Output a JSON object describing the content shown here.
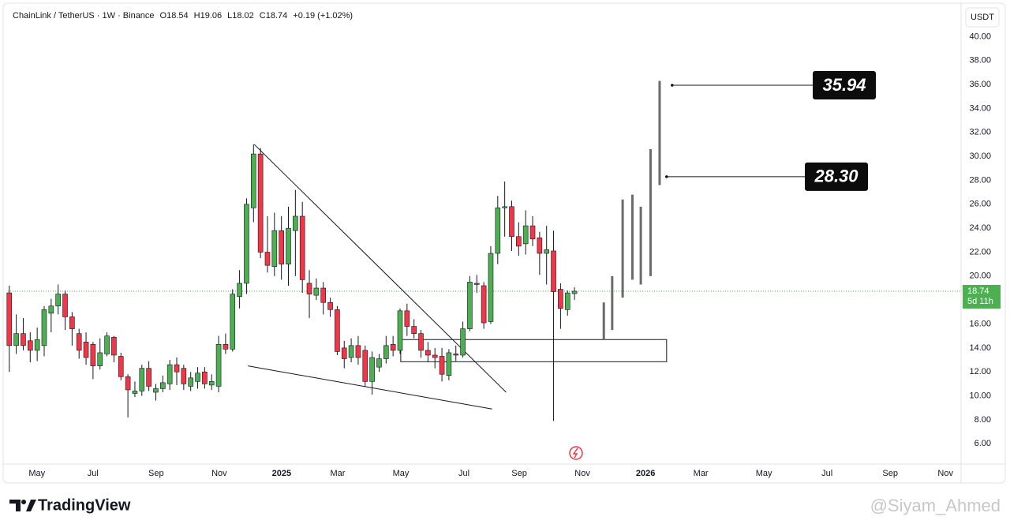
{
  "chart_data": {
    "type": "candlestick",
    "header": [
      "ChainLink / TetherUS · 1W · Binance",
      "O18.54",
      "H19.06",
      "L18.02",
      "C18.74",
      "+0.19 (+1.02%)"
    ],
    "currency": "USDT",
    "countdown": "5d 11h",
    "up_color": "#4caf50",
    "down_color": "#f23645",
    "grid": false,
    "open": [
      18.6,
      14.2,
      15.2,
      14.6,
      13.8,
      14.2,
      16.9,
      17.5,
      18.5,
      16.6,
      15.2,
      14.5,
      14.3,
      12.5,
      13.5,
      14.9,
      13.3,
      11.6,
      10.2,
      10.4,
      12.3,
      10.3,
      10.6,
      11,
      12.6,
      12.3,
      10.8,
      11.2,
      12,
      10.9,
      10.8,
      14.3,
      13.9,
      18.3,
      19.4,
      25.7,
      30.2,
      22,
      20.8,
      23.8,
      21,
      23.8,
      25,
      19.4,
      18.4,
      19,
      17.8,
      17.2,
      14,
      13.2,
      14.2,
      13.8,
      11.2,
      12.4,
      13.1,
      14.3,
      13.8,
      17.1,
      15.8,
      15.2,
      13.8,
      13.4,
      13.3,
      11.7,
      13.5,
      13.4,
      15.6,
      19.4,
      19.2,
      16.2,
      21.9,
      25.7,
      25.8,
      23.3,
      22.7,
      24.2,
      23.2,
      21.9,
      22.1,
      18.9,
      17.2,
      18.54
    ],
    "high": [
      19.2,
      16.8,
      16.5,
      15.3,
      15.7,
      17.5,
      18.1,
      19.3,
      18.8,
      17,
      15.6,
      15.3,
      14.5,
      14.8,
      15.3,
      15,
      13.6,
      11.8,
      11.2,
      12.6,
      12.9,
      11,
      11.7,
      13,
      13.2,
      12.6,
      12,
      12.4,
      12.4,
      11.8,
      15,
      15.2,
      18.9,
      20.5,
      26.5,
      31,
      30.7,
      25,
      25.3,
      25,
      25.8,
      27.2,
      26.2,
      20.5,
      19.8,
      19.5,
      18.2,
      17.5,
      14.6,
      14.8,
      15,
      14.2,
      13.7,
      13.5,
      15,
      15,
      17.3,
      17.7,
      16.4,
      15.5,
      14.5,
      14,
      14,
      13.9,
      14.2,
      16.2,
      20,
      20.1,
      19.5,
      22.5,
      26.7,
      27.9,
      26.3,
      24.5,
      25.5,
      25,
      23.7,
      24.2,
      23.8,
      19.4,
      18.8,
      19.06
    ],
    "low": [
      12,
      13.5,
      13.8,
      12.8,
      12.9,
      13.3,
      15.3,
      16.8,
      15.5,
      14.2,
      13.1,
      12.6,
      11.4,
      12.2,
      13.3,
      12.8,
      11.3,
      8.2,
      9.9,
      10,
      10.4,
      9.6,
      10.3,
      10.5,
      10.9,
      10.5,
      10.4,
      10.6,
      10.6,
      10.5,
      10.3,
      13.5,
      13.7,
      17.3,
      18.5,
      24.5,
      21.5,
      20.3,
      20,
      19.7,
      19.2,
      20,
      18.6,
      16.5,
      18,
      16.8,
      16.6,
      13.4,
      12.3,
      12.8,
      12.6,
      10.8,
      10.1,
      12,
      12.7,
      13.3,
      13.5,
      15,
      14.8,
      13.2,
      12.8,
      12.3,
      11.2,
      11.3,
      12.9,
      13.2,
      15.4,
      18.6,
      15.6,
      16,
      21,
      23.3,
      22.1,
      21.7,
      21.8,
      22.5,
      20.1,
      19.3,
      7.9,
      15.6,
      16.7,
      18.02
    ],
    "close": [
      14.2,
      15.2,
      14.2,
      13.8,
      14.7,
      17.2,
      17.5,
      18.5,
      16.6,
      15.6,
      13.8,
      13.2,
      12.5,
      13.6,
      15,
      13.4,
      11.6,
      10.5,
      10.4,
      12.3,
      10.8,
      10.6,
      11.1,
      12.6,
      12,
      11,
      11.5,
      11.9,
      11,
      11.2,
      14.3,
      13.9,
      18.5,
      19.4,
      26,
      30.2,
      22,
      20.9,
      23.8,
      21,
      24,
      25,
      19.7,
      18.5,
      19,
      17.8,
      17.2,
      13.7,
      13.1,
      14.2,
      13.2,
      11.2,
      13.2,
      13.1,
      14.2,
      13.8,
      17.1,
      15.8,
      15.2,
      13.8,
      13.4,
      13.2,
      11.8,
      13.6,
      13.4,
      15.6,
      19.5,
      19.3,
      16.1,
      21.9,
      25.7,
      25.8,
      23.3,
      22.5,
      24.2,
      23.1,
      21.9,
      22.2,
      18.7,
      17.3,
      18.6,
      18.74
    ],
    "xlim": [
      -0.2,
      136.4
    ],
    "xticks": [
      {
        "value": 3.96,
        "label": "May"
      },
      {
        "value": 11.99,
        "label": "Jul"
      },
      {
        "value": 21.04,
        "label": "Sep"
      },
      {
        "value": 30.09,
        "label": "Nov"
      },
      {
        "value": 39.03,
        "label": "2025"
      },
      {
        "value": 47.06,
        "label": "Mar"
      },
      {
        "value": 56.11,
        "label": "May"
      },
      {
        "value": 65.16,
        "label": "Jul"
      },
      {
        "value": 73.08,
        "label": "Sep"
      },
      {
        "value": 82.13,
        "label": "Nov"
      },
      {
        "value": 91.18,
        "label": "2026"
      },
      {
        "value": 99.1,
        "label": "Mar"
      },
      {
        "value": 108.14,
        "label": "May"
      },
      {
        "value": 117.19,
        "label": "Jul"
      },
      {
        "value": 126.24,
        "label": "Sep"
      },
      {
        "value": 134.16,
        "label": "Nov"
      }
    ],
    "ylim": [
      4.5,
      42.4
    ],
    "yticks": [
      {
        "value": 40,
        "label": "40.00"
      },
      {
        "value": 38,
        "label": "38.00"
      },
      {
        "value": 36,
        "label": "36.00"
      },
      {
        "value": 34,
        "label": "34.00"
      },
      {
        "value": 32,
        "label": "32.00"
      },
      {
        "value": 30,
        "label": "30.00"
      },
      {
        "value": 28,
        "label": "28.00"
      },
      {
        "value": 26,
        "label": "26.00"
      },
      {
        "value": 24,
        "label": "24.00"
      },
      {
        "value": 22,
        "label": "22.00"
      },
      {
        "value": 20,
        "label": "20.00"
      },
      {
        "value": 18,
        "label": "18.00"
      },
      {
        "value": 16,
        "label": "16.00"
      },
      {
        "value": 14,
        "label": "14.00"
      },
      {
        "value": 12,
        "label": "12.00"
      },
      {
        "value": 10,
        "label": "10.00"
      },
      {
        "value": 8,
        "label": "8.00"
      },
      {
        "value": 6,
        "label": "6.00"
      }
    ],
    "projection": {
      "color": "#6b6b6b",
      "x": [
        85.2,
        86.4,
        87.9,
        89.3,
        90.5,
        91.9,
        93.2
      ],
      "low": [
        14.7,
        15.5,
        18.2,
        19.7,
        19.3,
        20,
        27.6
      ],
      "high": [
        17.8,
        20,
        26.4,
        26.8,
        25.8,
        30.6,
        36.3
      ]
    },
    "zone": {
      "x": [
        56.1,
        94.2
      ],
      "y": [
        12.85,
        14.7
      ]
    },
    "trendlines": [
      {
        "x": [
          35.1,
          71.2
        ],
        "y": [
          31,
          10.3
        ]
      },
      {
        "x": [
          34.2,
          69.2
        ],
        "y": [
          12.5,
          8.9
        ]
      }
    ],
    "targets": [
      {
        "value": 35.94,
        "label": "35.94"
      },
      {
        "value": 28.3,
        "label": "28.30"
      }
    ]
  },
  "footer": {
    "brand": "TradingView",
    "watermark": "@Siyam_Ahmed"
  }
}
